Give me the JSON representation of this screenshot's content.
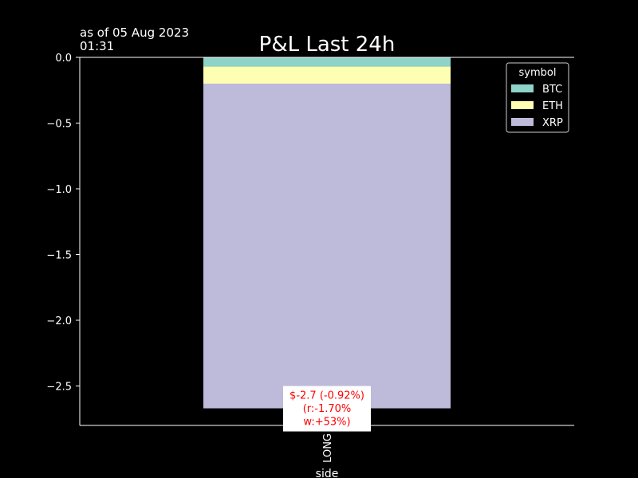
{
  "timestamp": {
    "line1": "as of 05 Aug 2023",
    "line2": "01:31"
  },
  "chart_data": {
    "type": "bar",
    "stacked": true,
    "title": "P&L Last 24h",
    "xlabel": "side",
    "ylabel": "",
    "categories": [
      "LONG"
    ],
    "ylim": [
      -2.8,
      0.0
    ],
    "yticks": [
      0.0,
      -0.5,
      -1.0,
      -1.5,
      -2.0,
      -2.5
    ],
    "ytick_labels": [
      "0.0",
      "−0.5",
      "−1.0",
      "−1.5",
      "−2.0",
      "−2.5"
    ],
    "series": [
      {
        "name": "BTC",
        "values": [
          -0.07
        ],
        "color": "#8dd3c7"
      },
      {
        "name": "ETH",
        "values": [
          -0.13
        ],
        "color": "#ffffb3"
      },
      {
        "name": "XRP",
        "values": [
          -2.47
        ],
        "color": "#bebada"
      }
    ],
    "legend": {
      "title": "symbol",
      "position": "top-right"
    },
    "annotation": {
      "lines": [
        "$-2.7 (-0.92%)",
        "(r:-1.70%",
        "w:+53%)"
      ],
      "color": "#ff0000",
      "background": "#ffffff"
    },
    "grid": false,
    "background": "#000000",
    "axis_color": "#ffffff"
  }
}
